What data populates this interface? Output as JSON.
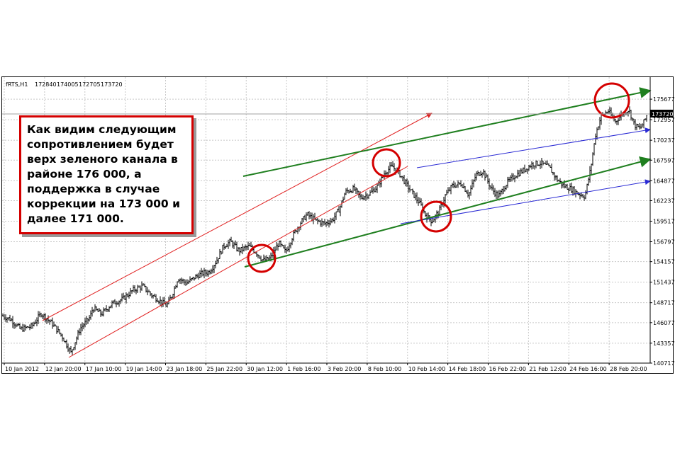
{
  "chart_data": {
    "type": "candlestick",
    "header": {
      "symbol": "fRTS,H1",
      "open": "172840",
      "high": "174005",
      "low": "172705",
      "close": "173720"
    },
    "current_price": 173720,
    "current_price_label": "173720",
    "ylim": [
      140717,
      177000
    ],
    "y_ticks": [
      {
        "value": 175677,
        "label": "175677"
      },
      {
        "value": 172957,
        "label": "172957"
      },
      {
        "value": 170237,
        "label": "170237"
      },
      {
        "value": 167597,
        "label": "167597"
      },
      {
        "value": 164877,
        "label": "164877"
      },
      {
        "value": 162237,
        "label": "162237"
      },
      {
        "value": 159517,
        "label": "159517"
      },
      {
        "value": 156797,
        "label": "156797"
      },
      {
        "value": 154157,
        "label": "154157"
      },
      {
        "value": 151437,
        "label": "151437"
      },
      {
        "value": 148717,
        "label": "148717"
      },
      {
        "value": 146077,
        "label": "146077"
      },
      {
        "value": 143357,
        "label": "143357"
      },
      {
        "value": 140717,
        "label": "140717"
      }
    ],
    "x_labels": [
      "10 Jan 2012",
      "12 Jan 20:00",
      "17 Jan 10:00",
      "19 Jan 14:00",
      "23 Jan 18:00",
      "25 Jan 22:00",
      "30 Jan 12:00",
      "1 Feb 16:00",
      "3 Feb 20:00",
      "8 Feb 10:00",
      "10 Feb 14:00",
      "14 Feb 18:00",
      "16 Feb 22:00",
      "21 Feb 12:00",
      "24 Feb 16:00",
      "28 Feb 20:00"
    ],
    "price_path": [
      [
        0,
        147000
      ],
      [
        12,
        146500
      ],
      [
        26,
        145200
      ],
      [
        42,
        145600
      ],
      [
        55,
        147300
      ],
      [
        70,
        146000
      ],
      [
        85,
        144200
      ],
      [
        97,
        142100
      ],
      [
        110,
        145300
      ],
      [
        124,
        146800
      ],
      [
        128,
        148000
      ],
      [
        140,
        147200
      ],
      [
        155,
        148600
      ],
      [
        170,
        149200
      ],
      [
        185,
        150400
      ],
      [
        198,
        150900
      ],
      [
        210,
        149800
      ],
      [
        222,
        149000
      ],
      [
        232,
        148300
      ],
      [
        240,
        149800
      ],
      [
        248,
        152000
      ],
      [
        260,
        151300
      ],
      [
        272,
        152100
      ],
      [
        282,
        152600
      ],
      [
        292,
        152800
      ],
      [
        302,
        154200
      ],
      [
        312,
        156200
      ],
      [
        322,
        156800
      ],
      [
        334,
        155600
      ],
      [
        348,
        156200
      ],
      [
        358,
        155400
      ],
      [
        368,
        154300
      ],
      [
        378,
        154600
      ],
      [
        390,
        156600
      ],
      [
        400,
        155400
      ],
      [
        410,
        157600
      ],
      [
        420,
        159200
      ],
      [
        430,
        160400
      ],
      [
        442,
        159600
      ],
      [
        455,
        159200
      ],
      [
        466,
        159700
      ],
      [
        476,
        161200
      ],
      [
        484,
        163400
      ],
      [
        496,
        163800
      ],
      [
        506,
        162600
      ],
      [
        520,
        163300
      ],
      [
        530,
        164200
      ],
      [
        540,
        166000
      ],
      [
        550,
        166800
      ],
      [
        562,
        165600
      ],
      [
        572,
        164100
      ],
      [
        582,
        162800
      ],
      [
        590,
        161700
      ],
      [
        598,
        160200
      ],
      [
        606,
        159500
      ],
      [
        616,
        160800
      ],
      [
        625,
        162900
      ],
      [
        635,
        164200
      ],
      [
        648,
        164500
      ],
      [
        658,
        163000
      ],
      [
        668,
        165600
      ],
      [
        678,
        166200
      ],
      [
        690,
        163800
      ],
      [
        700,
        162800
      ],
      [
        712,
        164600
      ],
      [
        724,
        165600
      ],
      [
        736,
        166300
      ],
      [
        748,
        167100
      ],
      [
        760,
        167200
      ],
      [
        772,
        166600
      ],
      [
        782,
        165100
      ],
      [
        792,
        164200
      ],
      [
        802,
        163800
      ],
      [
        812,
        163200
      ],
      [
        822,
        162800
      ],
      [
        830,
        166500
      ],
      [
        837,
        171000
      ],
      [
        845,
        173500
      ],
      [
        855,
        174100
      ],
      [
        865,
        172700
      ],
      [
        875,
        173800
      ],
      [
        884,
        174300
      ],
      [
        892,
        172200
      ],
      [
        900,
        171800
      ],
      [
        906,
        172800
      ],
      [
        910,
        173720
      ]
    ],
    "annotation": {
      "lines": [
        "Как видим следующим",
        "сопротивлением будет",
        "верх зеленого канала в",
        "районе 176 000, а",
        "поддержка в случае",
        "коррекции на 173 000 и",
        "далее 171 000."
      ]
    },
    "colors": {
      "candles": "#000000",
      "grid": "#c8c8c8",
      "red_channel": "#e02020",
      "green_channel": "#1f7f1f",
      "blue_channel": "#2a2ad4",
      "circles": "#d40000",
      "note_border": "#d40000"
    }
  }
}
